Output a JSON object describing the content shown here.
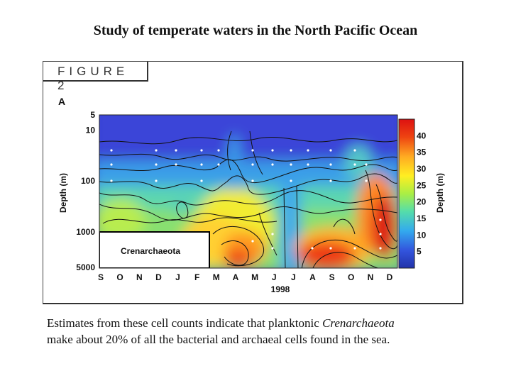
{
  "slide": {
    "title": "Study of temperate waters in the North Pacific Ocean",
    "caption_part1": "Estimates from these cell counts indicate that planktonic ",
    "caption_italic": "Crenarchaeota",
    "caption_part2": "make about 20% of all the bacterial and archaeal cells found in the sea."
  },
  "figure": {
    "header": "FIGURE 2",
    "panel_label": "A",
    "inset_label": "Crenarchaeota"
  },
  "chart_data": {
    "type": "heatmap",
    "title": "",
    "xlabel": "1998",
    "ylabel": "Depth (m)",
    "colorbar_label": "Depth (m)",
    "x_ticks": [
      "S",
      "O",
      "N",
      "D",
      "J",
      "F",
      "M",
      "A",
      "M",
      "J",
      "J",
      "A",
      "S",
      "O",
      "N",
      "D"
    ],
    "y_ticks": [
      "5",
      "10",
      "100",
      "1000",
      "5000"
    ],
    "y_scale": "log",
    "y_range": [
      5,
      5000
    ],
    "colorbar_ticks": [
      "40",
      "35",
      "30",
      "25",
      "20",
      "15",
      "10",
      "5"
    ],
    "colorbar_range": [
      0,
      45
    ],
    "colors": [
      "#2233aa",
      "#3355dd",
      "#33aaee",
      "#55ddaa",
      "#aaee44",
      "#ffee22",
      "#ffaa22",
      "#ee4411",
      "#dd1111"
    ],
    "inset_box": "bottom-left"
  }
}
